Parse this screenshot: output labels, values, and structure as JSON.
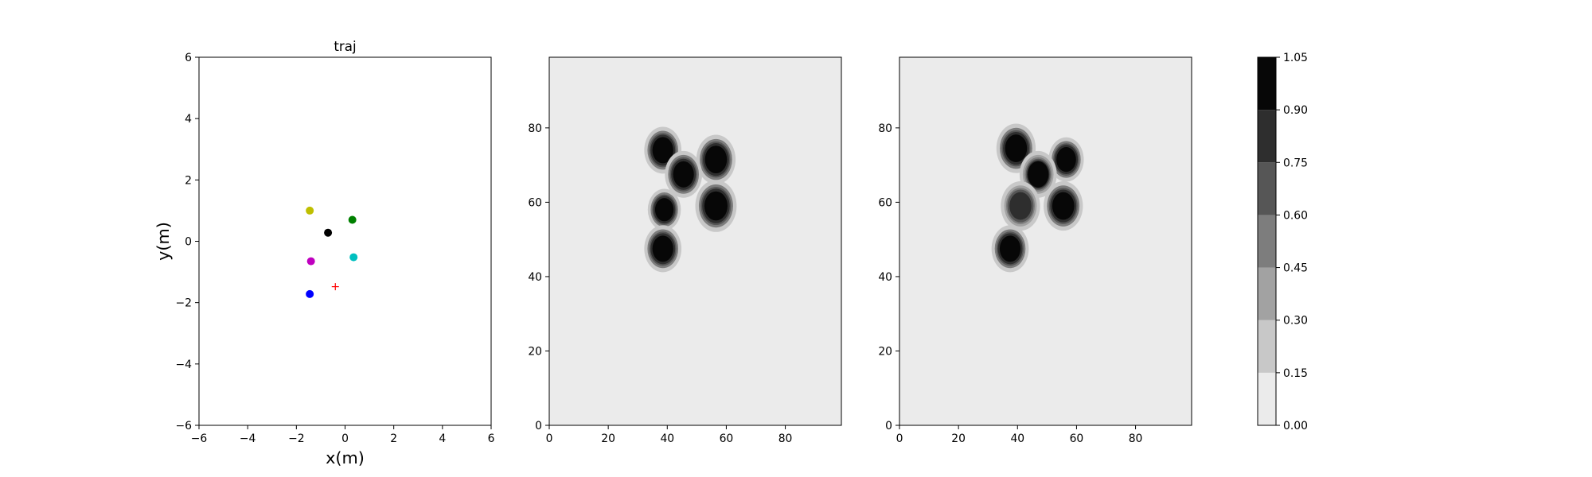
{
  "chart_data": [
    {
      "type": "scatter",
      "title": "traj",
      "xlabel": "x(m)",
      "ylabel": "y(m)",
      "xlim": [
        -6,
        6
      ],
      "ylim": [
        -6,
        6
      ],
      "xticks": [
        "−6",
        "−4",
        "−2",
        "0",
        "2",
        "4",
        "6"
      ],
      "yticks": [
        "−6",
        "−4",
        "−2",
        "0",
        "2",
        "4",
        "6"
      ],
      "grid": false,
      "points": [
        {
          "x": -1.45,
          "y": 1.0,
          "color": "#bfbf00",
          "marker": "circle"
        },
        {
          "x": 0.3,
          "y": 0.7,
          "color": "#008000",
          "marker": "circle"
        },
        {
          "x": -0.7,
          "y": 0.28,
          "color": "#000000",
          "marker": "circle"
        },
        {
          "x": 0.35,
          "y": -0.52,
          "color": "#00bfbf",
          "marker": "circle"
        },
        {
          "x": -1.4,
          "y": -0.65,
          "color": "#bf00bf",
          "marker": "circle"
        },
        {
          "x": -1.45,
          "y": -1.72,
          "color": "#0000ff",
          "marker": "circle"
        },
        {
          "x": -0.4,
          "y": -1.48,
          "color": "#ff0000",
          "marker": "plus"
        }
      ]
    },
    {
      "type": "heatmap",
      "xlim": [
        0,
        99
      ],
      "ylim": [
        0,
        99
      ],
      "xticks": [
        "0",
        "20",
        "40",
        "60",
        "80"
      ],
      "yticks": [
        "0",
        "20",
        "40",
        "60",
        "80"
      ],
      "background_value": 0.0,
      "blobs": [
        {
          "x": 38.5,
          "y": 74,
          "radius": 3.6,
          "peak": 1.0
        },
        {
          "x": 56.5,
          "y": 71.5,
          "radius": 3.8,
          "peak": 1.0
        },
        {
          "x": 45.5,
          "y": 67.5,
          "radius": 3.6,
          "peak": 1.0
        },
        {
          "x": 39,
          "y": 58,
          "radius": 3.2,
          "peak": 1.0
        },
        {
          "x": 56.5,
          "y": 59,
          "radius": 4.0,
          "peak": 1.0
        },
        {
          "x": 38.5,
          "y": 47.5,
          "radius": 3.6,
          "peak": 1.0
        }
      ]
    },
    {
      "type": "heatmap",
      "xlim": [
        0,
        99
      ],
      "ylim": [
        0,
        99
      ],
      "xticks": [
        "0",
        "20",
        "40",
        "60",
        "80"
      ],
      "yticks": [
        "0",
        "20",
        "40",
        "60",
        "80"
      ],
      "background_value": 0.0,
      "blobs": [
        {
          "x": 39.5,
          "y": 74.5,
          "radius": 3.8,
          "peak": 1.0
        },
        {
          "x": 56.5,
          "y": 71.5,
          "radius": 3.4,
          "peak": 1.0
        },
        {
          "x": 47,
          "y": 67.5,
          "radius": 3.6,
          "peak": 0.95
        },
        {
          "x": 41,
          "y": 59,
          "radius": 3.8,
          "peak": 0.8
        },
        {
          "x": 55.5,
          "y": 59,
          "radius": 3.8,
          "peak": 1.0
        },
        {
          "x": 37.5,
          "y": 47.5,
          "radius": 3.6,
          "peak": 1.0
        }
      ]
    }
  ],
  "colorbar": {
    "levels": [
      0.0,
      0.15,
      0.3,
      0.45,
      0.6,
      0.75,
      0.9,
      1.05
    ],
    "labels": [
      "0.00",
      "0.15",
      "0.30",
      "0.45",
      "0.60",
      "0.75",
      "0.90",
      "1.05"
    ],
    "colors": [
      "#ebebeb",
      "#c8c8c8",
      "#a2a2a2",
      "#7d7d7d",
      "#565656",
      "#2e2e2e",
      "#070707"
    ]
  }
}
